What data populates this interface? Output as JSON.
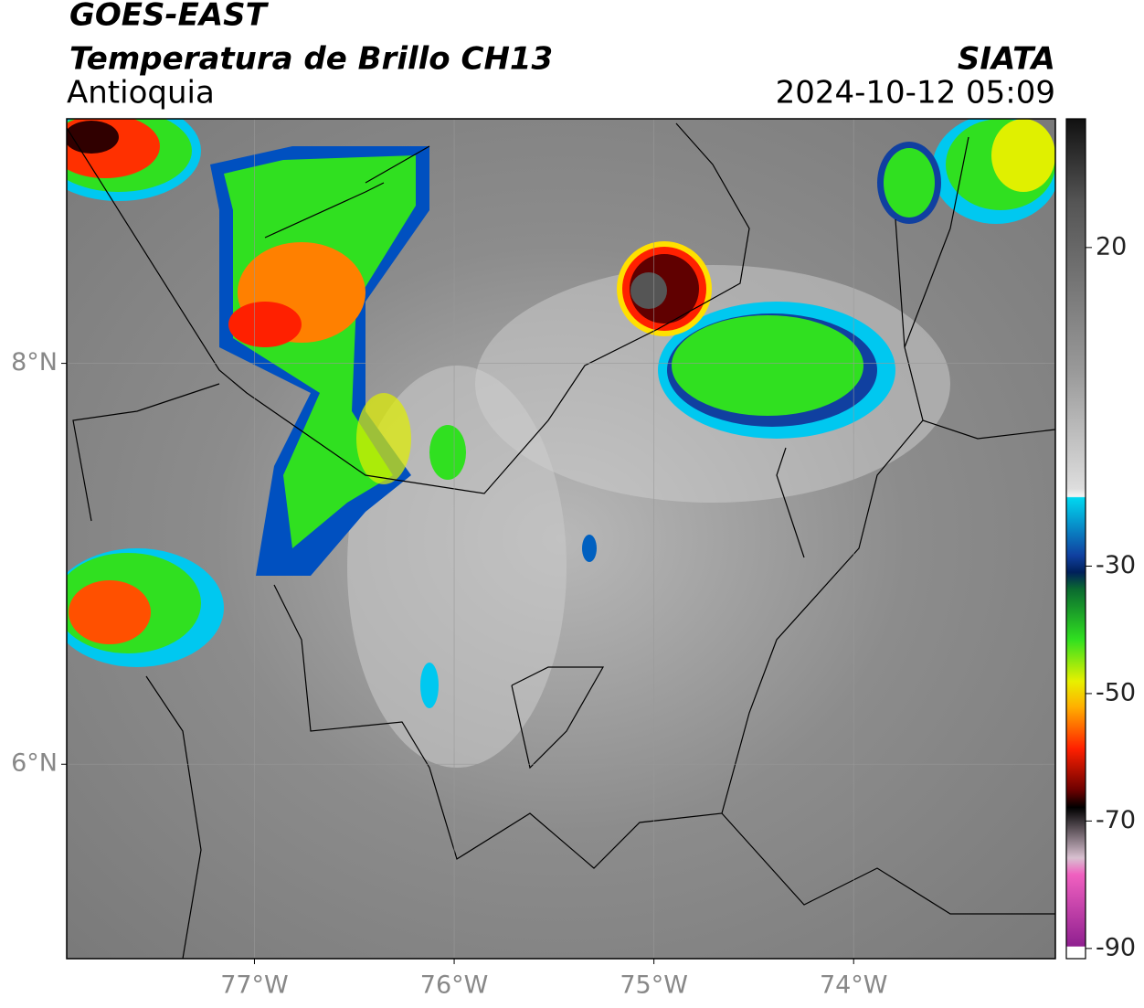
{
  "header": {
    "satellite": "GOES-EAST",
    "product": "Temperatura de Brillo CH13",
    "region": "Antioquia",
    "source": "SIATA",
    "datetime": "2024-10-12 05:09"
  },
  "map": {
    "xlim": [
      -77.94,
      -72.99
    ],
    "ylim": [
      5.03,
      9.22
    ],
    "xticks": [
      {
        "value": -77,
        "label": "77°W"
      },
      {
        "value": -76,
        "label": "76°W"
      },
      {
        "value": -75,
        "label": "75°W"
      },
      {
        "value": -74,
        "label": "74°W"
      }
    ],
    "yticks": [
      {
        "value": 8,
        "label": "8°N"
      },
      {
        "value": 6,
        "label": "6°N"
      }
    ],
    "grid": true
  },
  "colorbar": {
    "lim": [
      -91.6,
      40.2
    ],
    "ticks": [
      20,
      -30,
      -50,
      -70,
      -90
    ]
  }
}
